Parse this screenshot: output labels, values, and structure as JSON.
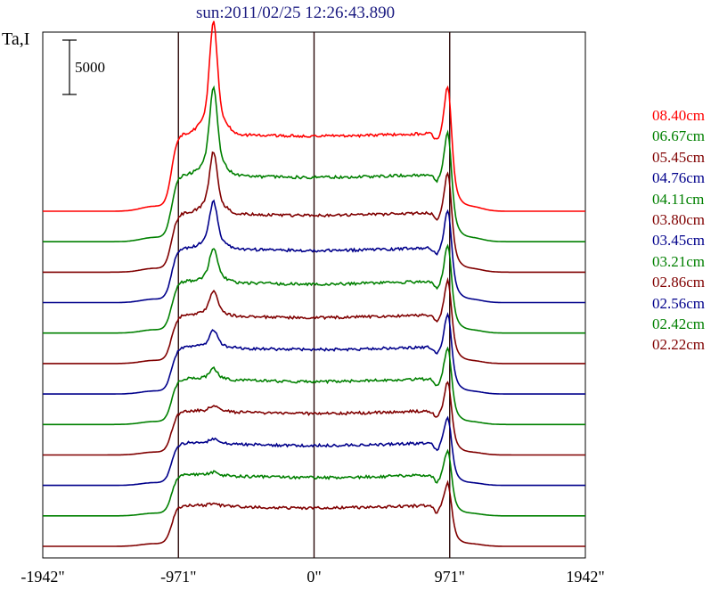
{
  "title": "sun:2011/02/25 12:26:43.890",
  "y_label": "Ta,I",
  "scale_bar": {
    "label": "5000",
    "value": 5000
  },
  "chart_data": {
    "type": "line",
    "x_unit": "arcsec",
    "x_ticks": [
      "-1942\"",
      "-971\"",
      "0\"",
      "971\"",
      "1942\""
    ],
    "x_tick_values": [
      -1942,
      -971,
      0,
      971,
      1942
    ],
    "xlim": [
      -1942,
      1942
    ],
    "vertical_markers": [
      -971,
      0,
      971
    ],
    "grid": false,
    "legend_position": "right",
    "series": [
      {
        "name": "08.40cm",
        "color": "#ff0000",
        "peak_left": 1.0,
        "peak_right": 0.7,
        "plateau": 0.52
      },
      {
        "name": "06.67cm",
        "color": "#008000",
        "peak_left": 0.78,
        "peak_right": 0.62,
        "plateau": 0.45
      },
      {
        "name": "05.45cm",
        "color": "#800000",
        "peak_left": 0.55,
        "peak_right": 0.58,
        "plateau": 0.4
      },
      {
        "name": "04.76cm",
        "color": "#00008b",
        "peak_left": 0.42,
        "peak_right": 0.55,
        "plateau": 0.37
      },
      {
        "name": "04.11cm",
        "color": "#008000",
        "peak_left": 0.3,
        "peak_right": 0.52,
        "plateau": 0.35
      },
      {
        "name": "03.80cm",
        "color": "#800000",
        "peak_left": 0.22,
        "peak_right": 0.5,
        "plateau": 0.33
      },
      {
        "name": "03.45cm",
        "color": "#00008b",
        "peak_left": 0.16,
        "peak_right": 0.47,
        "plateau": 0.32
      },
      {
        "name": "03.21cm",
        "color": "#008000",
        "peak_left": 0.1,
        "peak_right": 0.45,
        "plateau": 0.31
      },
      {
        "name": "02.86cm",
        "color": "#800000",
        "peak_left": 0.05,
        "peak_right": 0.42,
        "plateau": 0.3
      },
      {
        "name": "02.56cm",
        "color": "#00008b",
        "peak_left": 0.04,
        "peak_right": 0.38,
        "plateau": 0.29
      },
      {
        "name": "02.42cm",
        "color": "#008000",
        "peak_left": 0.03,
        "peak_right": 0.36,
        "plateau": 0.28
      },
      {
        "name": "02.22cm",
        "color": "#800000",
        "peak_left": 0.02,
        "peak_right": 0.34,
        "plateau": 0.28
      }
    ]
  }
}
